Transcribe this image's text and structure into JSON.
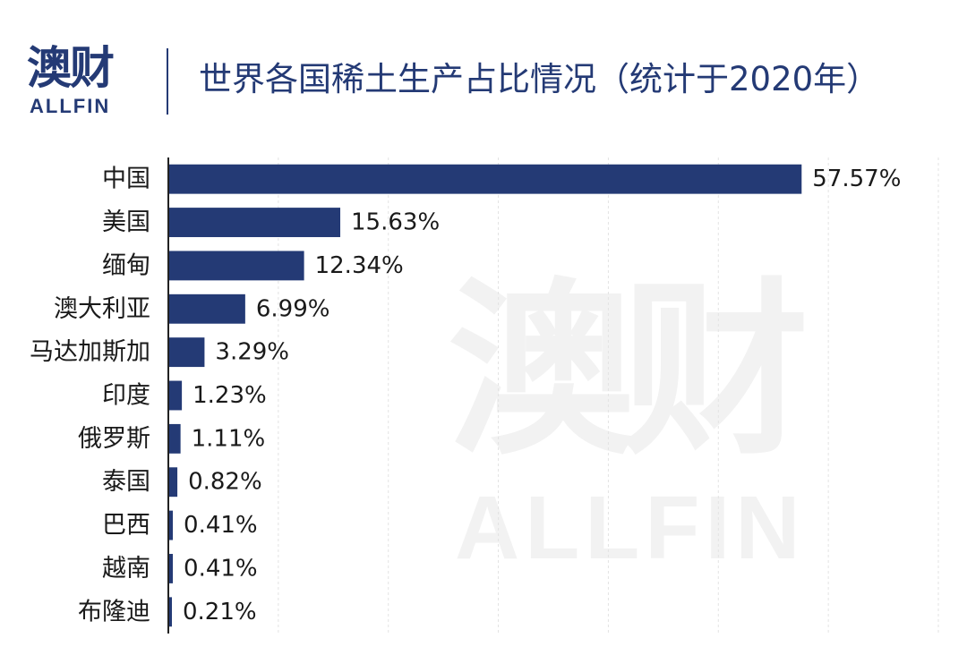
{
  "brand": {
    "name_cn": "澳财",
    "name_en": "ALLFIN"
  },
  "watermark": {
    "cn": "澳财",
    "en": "ALLFIN"
  },
  "header": {
    "title": "世界各国稀土生产占比情况（统计于2020年）"
  },
  "colors": {
    "bar": "#243a75",
    "text": "#1a1a1a",
    "grid": "#e3e3e3",
    "axis": "#222222"
  },
  "chart_data": {
    "type": "bar",
    "orientation": "horizontal",
    "title": "世界各国稀土生产占比情况（统计于2020年）",
    "categories": [
      "中国",
      "美国",
      "缅甸",
      "澳大利亚",
      "马达加斯加",
      "印度",
      "俄罗斯",
      "泰国",
      "巴西",
      "越南",
      "布隆迪"
    ],
    "values": [
      57.57,
      15.63,
      12.34,
      6.99,
      3.29,
      1.23,
      1.11,
      0.82,
      0.41,
      0.41,
      0.21
    ],
    "data_labels": [
      "57.57%",
      "15.63%",
      "12.34%",
      "6.99%",
      "3.29%",
      "1.23%",
      "1.11%",
      "0.82%",
      "0.41%",
      "0.41%",
      "0.21%"
    ],
    "unit": "%",
    "xlim": [
      0,
      70
    ],
    "grid": true,
    "legend": "none"
  }
}
